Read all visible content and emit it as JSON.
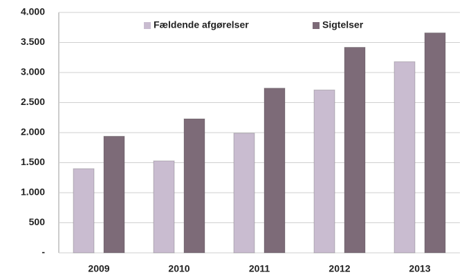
{
  "chart_data": {
    "type": "bar",
    "categories": [
      "2009",
      "2010",
      "2011",
      "2012",
      "2013"
    ],
    "series": [
      {
        "name": "Fældende afgørelser",
        "color": "#c9bcd0",
        "values": [
          1400,
          1530,
          1990,
          2710,
          3180
        ]
      },
      {
        "name": "Sigtelser",
        "color": "#7d6b78",
        "values": [
          1940,
          2230,
          2740,
          3420,
          3660
        ]
      }
    ],
    "ylim": [
      0,
      4000
    ],
    "yticks": [
      {
        "value": 0,
        "label": "-"
      },
      500,
      {
        "value": 1000,
        "label": "1.000"
      },
      {
        "value": 1500,
        "label": "1.500"
      },
      {
        "value": 2000,
        "label": "2.000"
      },
      {
        "value": 2500,
        "label": "2.500"
      },
      {
        "value": 3000,
        "label": "3.000"
      },
      {
        "value": 3500,
        "label": "3.500"
      },
      {
        "value": 4000,
        "label": "4.000"
      }
    ],
    "grid": true,
    "legend": "top"
  }
}
